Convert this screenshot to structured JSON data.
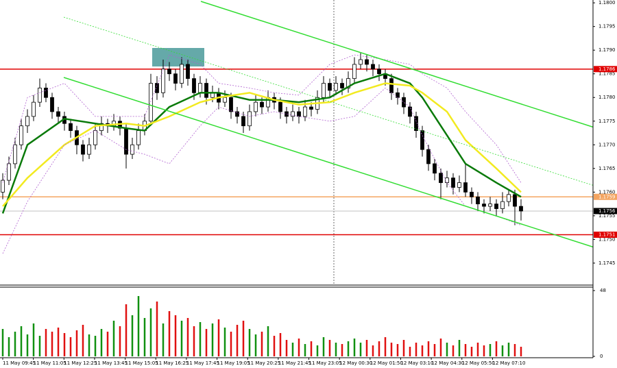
{
  "chart_data": {
    "type": "candlestick",
    "ylim": [
      1.17405,
      1.18006
    ],
    "yticks": [
      {
        "value": 1.18,
        "label": "1.1800"
      },
      {
        "value": 1.1795,
        "label": "1.1795"
      },
      {
        "value": 1.179,
        "label": "1.1790"
      },
      {
        "value": 1.1785,
        "label": "1.1785"
      },
      {
        "value": 1.178,
        "label": "1.1780"
      },
      {
        "value": 1.1775,
        "label": "1.1775"
      },
      {
        "value": 1.177,
        "label": "1.1770"
      },
      {
        "value": 1.1765,
        "label": "1.1765"
      },
      {
        "value": 1.176,
        "label": "1.1760"
      },
      {
        "value": 1.1755,
        "label": "1.1755"
      },
      {
        "value": 1.175,
        "label": "1.1750"
      },
      {
        "value": 1.1745,
        "label": "1.1745"
      }
    ],
    "levels": [
      {
        "value": 1.1786,
        "label": "1.1786",
        "color": "#e00000"
      },
      {
        "value": 1.1759,
        "label": "1.1759",
        "color": "#f4a460"
      },
      {
        "value": 1.1756,
        "label": "1.1756",
        "color": "#c0c0c0"
      },
      {
        "value": 1.1751,
        "label": "1.1751",
        "color": "#e00000"
      }
    ],
    "x_labels": [
      "11 May 09:45",
      "11 May 11:05",
      "11 May 12:25",
      "11 May 13:45",
      "11 May 15:05",
      "11 May 16:25",
      "11 May 17:45",
      "11 May 19:05",
      "11 May 20:25",
      "11 May 21:45",
      "11 May 23:05",
      "12 May 00:30",
      "12 May 01:50",
      "12 May 03:10",
      "12 May 04:30",
      "12 May 05:50",
      "12 May 07:10"
    ],
    "candles": [
      [
        1.176,
        1.1764,
        1.17585,
        1.17625
      ],
      [
        1.17625,
        1.17675,
        1.17615,
        1.1766
      ],
      [
        1.1766,
        1.17715,
        1.1765,
        1.177
      ],
      [
        1.177,
        1.17755,
        1.1769,
        1.1774
      ],
      [
        1.1774,
        1.17775,
        1.17725,
        1.1776
      ],
      [
        1.1776,
        1.17805,
        1.1775,
        1.1779
      ],
      [
        1.1779,
        1.1784,
        1.1778,
        1.1782
      ],
      [
        1.1782,
        1.1783,
        1.1779,
        1.178
      ],
      [
        1.178,
        1.1781,
        1.17755,
        1.1777
      ],
      [
        1.1777,
        1.1778,
        1.17745,
        1.1776
      ],
      [
        1.1776,
        1.1777,
        1.1773,
        1.17745
      ],
      [
        1.17745,
        1.17755,
        1.17715,
        1.1773
      ],
      [
        1.1773,
        1.1774,
        1.1768,
        1.177
      ],
      [
        1.177,
        1.1771,
        1.17665,
        1.1768
      ],
      [
        1.1768,
        1.17715,
        1.1767,
        1.177
      ],
      [
        1.177,
        1.17745,
        1.1769,
        1.1773
      ],
      [
        1.1773,
        1.1776,
        1.1772,
        1.17745
      ],
      [
        1.17745,
        1.17755,
        1.17725,
        1.1774
      ],
      [
        1.1774,
        1.17765,
        1.1773,
        1.1775
      ],
      [
        1.1775,
        1.1776,
        1.1772,
        1.17735
      ],
      [
        1.17735,
        1.17745,
        1.1765,
        1.1768
      ],
      [
        1.1768,
        1.17715,
        1.1767,
        1.177
      ],
      [
        1.177,
        1.17745,
        1.1769,
        1.1773
      ],
      [
        1.1773,
        1.17765,
        1.1772,
        1.1775
      ],
      [
        1.1775,
        1.1785,
        1.1774,
        1.1783
      ],
      [
        1.1783,
        1.17845,
        1.17795,
        1.1781
      ],
      [
        1.1781,
        1.1788,
        1.178,
        1.1786
      ],
      [
        1.1786,
        1.17875,
        1.17835,
        1.1785
      ],
      [
        1.1785,
        1.1786,
        1.17815,
        1.1783
      ],
      [
        1.1783,
        1.17885,
        1.1782,
        1.1787
      ],
      [
        1.1787,
        1.1788,
        1.17825,
        1.1784
      ],
      [
        1.1784,
        1.1785,
        1.17795,
        1.1781
      ],
      [
        1.1781,
        1.17845,
        1.178,
        1.1783
      ],
      [
        1.1783,
        1.1784,
        1.17785,
        1.178
      ],
      [
        1.178,
        1.17825,
        1.1779,
        1.1781
      ],
      [
        1.1781,
        1.1782,
        1.17775,
        1.1779
      ],
      [
        1.1779,
        1.17815,
        1.1778,
        1.178
      ],
      [
        1.178,
        1.1781,
        1.17755,
        1.1777
      ],
      [
        1.1777,
        1.1778,
        1.17745,
        1.1776
      ],
      [
        1.1776,
        1.1777,
        1.17725,
        1.1774
      ],
      [
        1.1774,
        1.17785,
        1.1773,
        1.1777
      ],
      [
        1.1777,
        1.17805,
        1.1776,
        1.1779
      ],
      [
        1.1779,
        1.178,
        1.17765,
        1.1778
      ],
      [
        1.1778,
        1.17815,
        1.1777,
        1.178
      ],
      [
        1.178,
        1.1781,
        1.17775,
        1.1779
      ],
      [
        1.1779,
        1.178,
        1.17755,
        1.1777
      ],
      [
        1.1777,
        1.1778,
        1.17745,
        1.1776
      ],
      [
        1.1776,
        1.17785,
        1.1775,
        1.1777
      ],
      [
        1.1777,
        1.1778,
        1.17745,
        1.1776
      ],
      [
        1.1776,
        1.17795,
        1.1775,
        1.1778
      ],
      [
        1.1778,
        1.1779,
        1.1776,
        1.17775
      ],
      [
        1.17775,
        1.17815,
        1.17765,
        1.178
      ],
      [
        1.178,
        1.17845,
        1.1779,
        1.1783
      ],
      [
        1.1783,
        1.1784,
        1.178,
        1.17815
      ],
      [
        1.17815,
        1.17845,
        1.17805,
        1.1783
      ],
      [
        1.1783,
        1.1784,
        1.17805,
        1.1782
      ],
      [
        1.1782,
        1.17855,
        1.1781,
        1.1784
      ],
      [
        1.1784,
        1.17885,
        1.1783,
        1.1787
      ],
      [
        1.1787,
        1.17895,
        1.1786,
        1.1788
      ],
      [
        1.1788,
        1.1789,
        1.17855,
        1.1787
      ],
      [
        1.1787,
        1.1788,
        1.17845,
        1.1786
      ],
      [
        1.1786,
        1.1787,
        1.17835,
        1.1785
      ],
      [
        1.1785,
        1.1786,
        1.17825,
        1.1784
      ],
      [
        1.1784,
        1.1785,
        1.17795,
        1.1781
      ],
      [
        1.1781,
        1.1782,
        1.17785,
        1.178
      ],
      [
        1.178,
        1.1781,
        1.17765,
        1.1778
      ],
      [
        1.1778,
        1.1779,
        1.17745,
        1.1776
      ],
      [
        1.1776,
        1.1777,
        1.17715,
        1.1773
      ],
      [
        1.1773,
        1.1774,
        1.17675,
        1.1769
      ],
      [
        1.1769,
        1.177,
        1.17645,
        1.1766
      ],
      [
        1.1766,
        1.1767,
        1.17625,
        1.1764
      ],
      [
        1.1764,
        1.1765,
        1.17585,
        1.1762
      ],
      [
        1.1762,
        1.17645,
        1.1761,
        1.1763
      ],
      [
        1.1763,
        1.1764,
        1.17595,
        1.1761
      ],
      [
        1.1761,
        1.17635,
        1.176,
        1.1762
      ],
      [
        1.1762,
        1.1766,
        1.1759,
        1.176
      ],
      [
        1.176,
        1.1761,
        1.17575,
        1.1759
      ],
      [
        1.1759,
        1.176,
        1.1756,
        1.17575
      ],
      [
        1.17575,
        1.17585,
        1.17555,
        1.1757
      ],
      [
        1.1757,
        1.1759,
        1.1756,
        1.17575
      ],
      [
        1.17575,
        1.17585,
        1.1755,
        1.17565
      ],
      [
        1.17565,
        1.176,
        1.17555,
        1.1758
      ],
      [
        1.1758,
        1.17605,
        1.1757,
        1.17595
      ],
      [
        1.17595,
        1.17605,
        1.1753,
        1.1757
      ],
      [
        1.1757,
        1.17585,
        1.1754,
        1.1756
      ]
    ],
    "volume": {
      "ylim": [
        0,
        48
      ],
      "yticks": [
        48,
        0
      ],
      "values": [
        20,
        14,
        18,
        22,
        16,
        24,
        15,
        20,
        18,
        21,
        17,
        14,
        19,
        23,
        16,
        15,
        20,
        18,
        26,
        22,
        38,
        30,
        44,
        28,
        35,
        40,
        24,
        33,
        30,
        26,
        28,
        22,
        25,
        20,
        24,
        27,
        21,
        18,
        23,
        26,
        20,
        16,
        18,
        22,
        15,
        17,
        12,
        10,
        13,
        9,
        11,
        8,
        14,
        12,
        10,
        9,
        11,
        13,
        10,
        12,
        8,
        11,
        14,
        10,
        9,
        12,
        7,
        10,
        8,
        11,
        9,
        13,
        10,
        8,
        12,
        9,
        7,
        10,
        8,
        9,
        11,
        8,
        10,
        9,
        7
      ],
      "up_color": "#109010",
      "down_color": "#e01010"
    },
    "lines": [
      {
        "color": "#0a7a0a",
        "width": 2.5,
        "dash": "",
        "x": [
          0,
          4,
          10,
          15,
          20,
          23,
          27,
          32,
          35,
          40,
          44,
          48,
          53,
          57,
          62,
          66,
          68,
          72,
          75,
          80,
          84
        ],
        "values": [
          1.17555,
          1.177,
          1.17755,
          1.17745,
          1.17735,
          1.1773,
          1.1778,
          1.1781,
          1.1781,
          1.17795,
          1.17795,
          1.1779,
          1.178,
          1.1783,
          1.1785,
          1.1783,
          1.178,
          1.1772,
          1.1766,
          1.1762,
          1.1759
        ]
      },
      {
        "color": "#f2ea20",
        "width": 2.5,
        "dash": "",
        "x": [
          0,
          4,
          10,
          15,
          20,
          23,
          27,
          32,
          35,
          40,
          44,
          48,
          53,
          57,
          62,
          66,
          68,
          72,
          75,
          80,
          84
        ],
        "values": [
          1.1757,
          1.1763,
          1.177,
          1.1774,
          1.17745,
          1.1774,
          1.1776,
          1.1779,
          1.178,
          1.1781,
          1.17795,
          1.17785,
          1.1779,
          1.1781,
          1.1783,
          1.17825,
          1.1781,
          1.1777,
          1.1771,
          1.1765,
          1.176
        ]
      },
      {
        "color": "#b060d0",
        "width": 0.8,
        "dash": "2 2",
        "x": [
          0,
          4,
          10,
          15,
          20,
          23,
          27,
          32,
          35,
          40,
          44,
          48,
          53,
          57,
          62,
          66,
          68,
          72,
          75,
          80,
          84
        ],
        "values": [
          1.1762,
          1.178,
          1.1783,
          1.1776,
          1.1776,
          1.1776,
          1.1789,
          1.1787,
          1.1783,
          1.1782,
          1.1781,
          1.17805,
          1.1787,
          1.1789,
          1.1788,
          1.1787,
          1.1785,
          1.1782,
          1.1777,
          1.177,
          1.1762
        ]
      },
      {
        "color": "#b060d0",
        "width": 0.8,
        "dash": "2 2",
        "x": [
          0,
          4,
          10,
          15,
          20,
          23,
          27,
          32,
          35,
          40,
          44,
          48,
          53,
          57,
          62,
          66,
          68,
          72,
          75,
          80,
          84
        ],
        "values": [
          1.1747,
          1.1758,
          1.177,
          1.1773,
          1.1769,
          1.1768,
          1.1766,
          1.1774,
          1.1778,
          1.1776,
          1.1777,
          1.1776,
          1.1775,
          1.1776,
          1.1782,
          1.1778,
          1.1772,
          1.1762,
          1.1757,
          1.1755,
          1.1753
        ]
      }
    ]
  }
}
